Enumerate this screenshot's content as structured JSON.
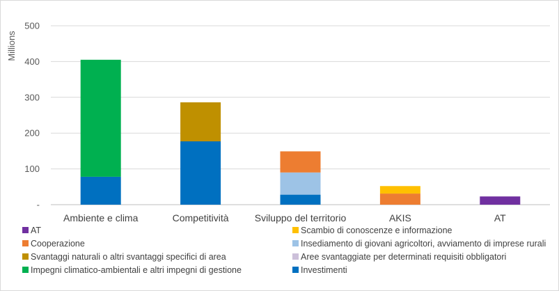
{
  "chart_data": {
    "type": "bar",
    "stacked": true,
    "ylabel": "Millions",
    "ylim": [
      0,
      500
    ],
    "yticks": [
      0,
      100,
      200,
      300,
      400,
      500
    ],
    "ytick_labels": [
      "-",
      "100",
      "200",
      "300",
      "400",
      "500"
    ],
    "grid": true,
    "legend_position": "bottom",
    "categories": [
      "Ambiente e clima",
      "Competitività",
      "Sviluppo del territorio",
      "AKIS",
      "AT"
    ],
    "series": [
      {
        "name": "Investimenti",
        "color": "#0070C0",
        "values": [
          78,
          177,
          28,
          0,
          0
        ]
      },
      {
        "name": "Impegni climatico-ambientali e altri impegni di gestione",
        "color": "#00B050",
        "values": [
          327,
          0,
          0,
          0,
          0
        ]
      },
      {
        "name": "Aree svantaggiate per determinati requisiti obbligatori",
        "color": "#CCC0DA",
        "values": [
          0,
          0,
          0,
          0,
          0
        ]
      },
      {
        "name": "Svantaggi naturali o altri svantaggi specifici di area",
        "color": "#BF9000",
        "values": [
          0,
          109,
          0,
          0,
          0
        ]
      },
      {
        "name": "Insediamento di giovani agricoltori, avviamento di imprese rurali",
        "color": "#9DC3E6",
        "values": [
          0,
          0,
          62,
          0,
          0
        ]
      },
      {
        "name": "Cooperazione",
        "color": "#ED7D31",
        "values": [
          0,
          0,
          59,
          31,
          0
        ]
      },
      {
        "name": "Scambio di conoscenze e informazione",
        "color": "#FFC000",
        "values": [
          0,
          0,
          0,
          21,
          0
        ]
      },
      {
        "name": "AT",
        "color": "#7030A0",
        "values": [
          0,
          0,
          0,
          0,
          23
        ]
      }
    ]
  }
}
